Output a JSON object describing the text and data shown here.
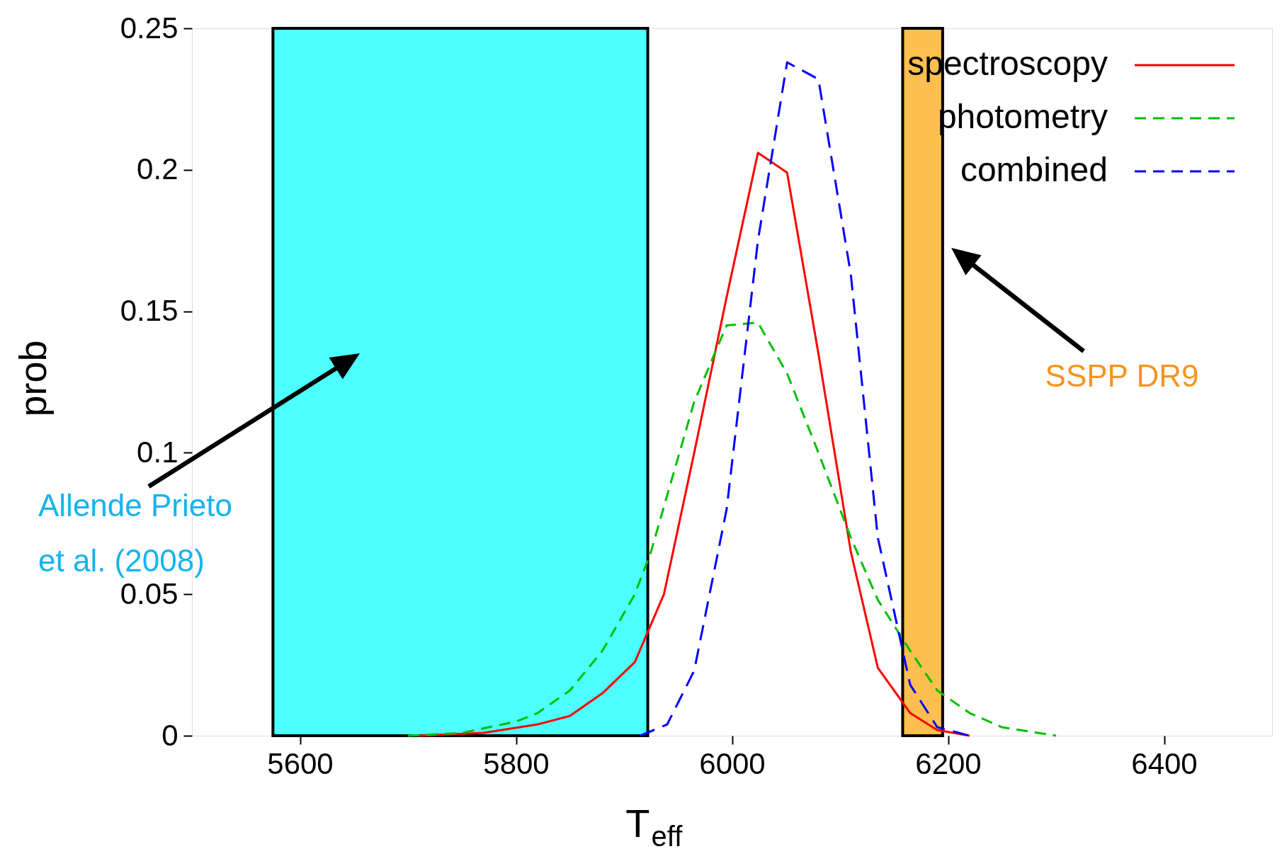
{
  "chart_data": {
    "type": "line",
    "xlabel": "T$_{eff}$",
    "ylabel": "prob",
    "xlim": [
      5500,
      6500
    ],
    "xticks": [
      5600,
      5800,
      6000,
      6200,
      6400
    ],
    "ylim": [
      0,
      0.25
    ],
    "yticks": [
      0,
      0.05,
      0.1,
      0.15,
      0.2,
      0.25
    ],
    "grid": false,
    "legend": "top right",
    "series": [
      {
        "name": "spectroscopy",
        "color": "#ff0000",
        "line_style": "solid",
        "x": [
          5710,
          5770,
          5820,
          5850,
          5880,
          5910,
          5937,
          5965,
          5995,
          6024,
          6051,
          6080,
          6110,
          6135,
          6165,
          6190,
          6220
        ],
        "values": [
          0,
          0.001,
          0.004,
          0.007,
          0.015,
          0.026,
          0.05,
          0.1,
          0.155,
          0.206,
          0.199,
          0.135,
          0.065,
          0.024,
          0.008,
          0.002,
          0
        ]
      },
      {
        "name": "photometry",
        "color": "#00c000",
        "line_style": "dashed",
        "x": [
          5700,
          5750,
          5800,
          5820,
          5850,
          5880,
          5910,
          5925,
          5940,
          5965,
          5995,
          6024,
          6051,
          6080,
          6110,
          6135,
          6165,
          6190,
          6220,
          6250,
          6300
        ],
        "values": [
          0,
          0.001,
          0.005,
          0.008,
          0.016,
          0.03,
          0.05,
          0.065,
          0.085,
          0.118,
          0.145,
          0.146,
          0.128,
          0.1,
          0.07,
          0.048,
          0.03,
          0.016,
          0.008,
          0.003,
          0
        ]
      },
      {
        "name": "combined",
        "color": "#0000ff",
        "line_style": "dashed",
        "x": [
          5915,
          5940,
          5965,
          5995,
          6024,
          6051,
          6080,
          6110,
          6135,
          6165,
          6190,
          6220
        ],
        "values": [
          0,
          0.004,
          0.023,
          0.08,
          0.175,
          0.238,
          0.232,
          0.163,
          0.07,
          0.018,
          0.003,
          0
        ]
      }
    ],
    "bands": [
      {
        "axis": "x",
        "from": 5575,
        "to": 5922,
        "color": "#4dffff"
      },
      {
        "axis": "x",
        "from": 6158,
        "to": 6195,
        "color": "#fdbf4f"
      }
    ],
    "annotations": [
      "Allende Prieto\net al. (2008)",
      "SSPP DR9"
    ]
  }
}
